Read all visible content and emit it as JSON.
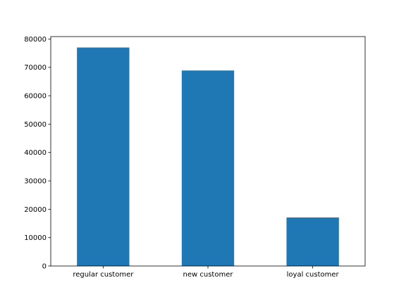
{
  "chart_data": {
    "type": "bar",
    "title": "",
    "xlabel": "",
    "ylabel": "",
    "categories": [
      "regular customer",
      "new customer",
      "loyal customer"
    ],
    "values": [
      77000,
      68900,
      17100
    ],
    "ylim": [
      0,
      80850
    ],
    "yticks": [
      0,
      10000,
      20000,
      30000,
      40000,
      50000,
      60000,
      70000,
      80000
    ],
    "ytick_labels": [
      "0",
      "10000",
      "20000",
      "30000",
      "40000",
      "50000",
      "60000",
      "70000",
      "80000"
    ],
    "bar_color": "#1f77b4",
    "grid": false,
    "legend": "none"
  }
}
